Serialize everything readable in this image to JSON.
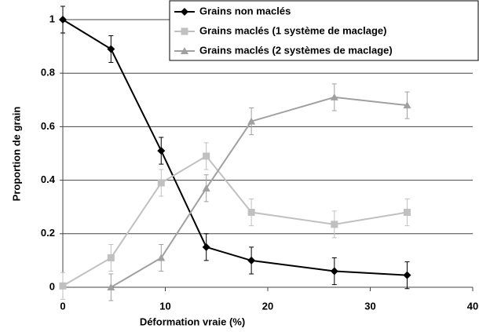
{
  "chart_data": {
    "type": "line",
    "xlabel": "Déformation vraie (%)",
    "ylabel": "Proportion de grain",
    "xlim": [
      0,
      40
    ],
    "xticks": [
      0,
      10,
      20,
      30,
      40
    ],
    "ylim": [
      0,
      1
    ],
    "yticks": [
      0,
      0.2,
      0.4,
      0.6,
      0.8,
      1
    ],
    "grid": true,
    "legend": "top-right",
    "series": [
      {
        "name": "Grains non maclés",
        "color": "#000000",
        "marker": "diamond",
        "x": [
          0,
          4.7,
          9.6,
          14,
          18.4,
          26.5,
          33.6
        ],
        "values": [
          1,
          0.89,
          0.51,
          0.15,
          0.1,
          0.06,
          0.045
        ],
        "errors": [
          0.05,
          0.05,
          0.05,
          0.05,
          0.05,
          0.05,
          0.05
        ]
      },
      {
        "name": "Grains maclés (1 système de maclage)",
        "color": "#c0c0c0",
        "marker": "square",
        "x": [
          0,
          4.7,
          9.6,
          14,
          18.4,
          26.5,
          33.6
        ],
        "values": [
          0.005,
          0.11,
          0.39,
          0.49,
          0.28,
          0.235,
          0.28
        ],
        "errors": [
          0.05,
          0.05,
          0.05,
          0.05,
          0.05,
          0.05,
          0.05
        ]
      },
      {
        "name": "Grains maclés (2 systèmes de maclage)",
        "color": "#a0a0a0",
        "marker": "triangle",
        "x": [
          4.7,
          9.6,
          14,
          18.4,
          26.5,
          33.6
        ],
        "values": [
          0,
          0.11,
          0.37,
          0.62,
          0.71,
          0.68
        ],
        "errors": [
          0.05,
          0.05,
          0.05,
          0.05,
          0.05,
          0.05
        ]
      }
    ]
  }
}
